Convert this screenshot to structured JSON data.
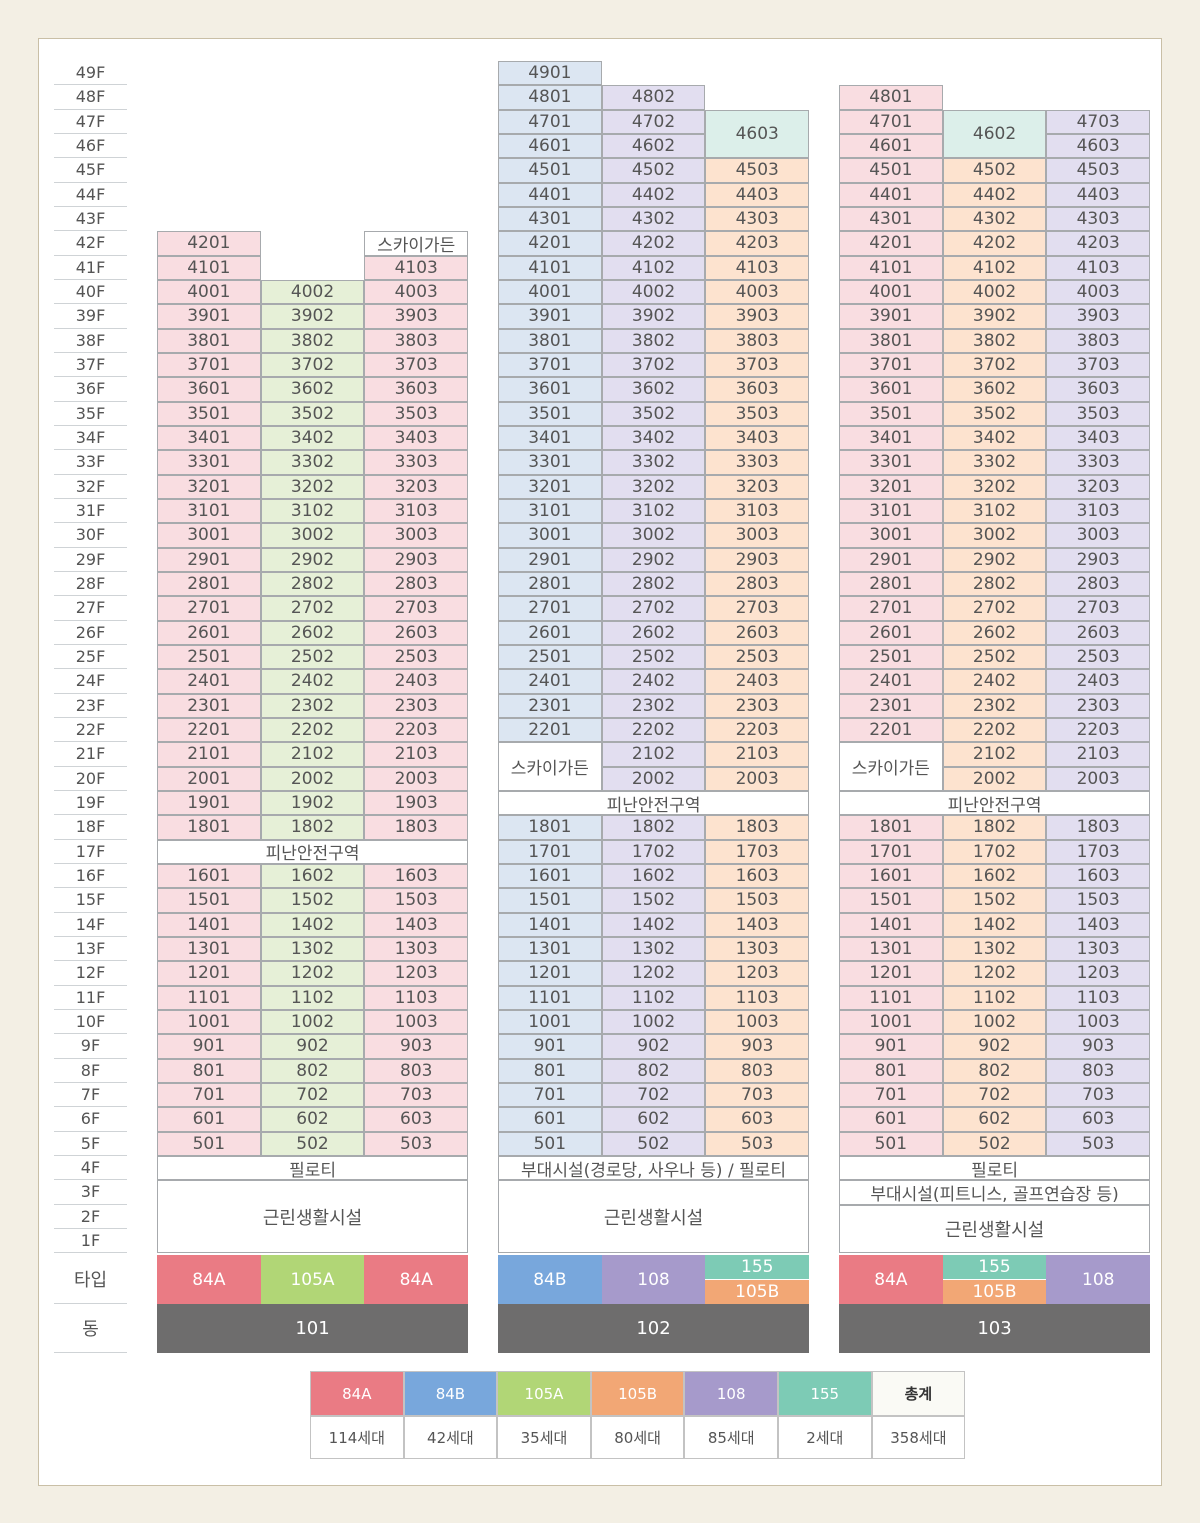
{
  "floors": [
    "49F",
    "48F",
    "47F",
    "46F",
    "45F",
    "44F",
    "43F",
    "42F",
    "41F",
    "40F",
    "39F",
    "38F",
    "37F",
    "36F",
    "35F",
    "34F",
    "33F",
    "32F",
    "31F",
    "30F",
    "29F",
    "28F",
    "27F",
    "26F",
    "25F",
    "24F",
    "23F",
    "22F",
    "21F",
    "20F",
    "19F",
    "18F",
    "17F",
    "16F",
    "15F",
    "14F",
    "13F",
    "12F",
    "11F",
    "10F",
    "9F",
    "8F",
    "7F",
    "6F",
    "5F",
    "4F",
    "3F",
    "2F",
    "1F"
  ],
  "row_labels": {
    "type": "타입",
    "dong": "동"
  },
  "colors": {
    "84A": "#f9dde1",
    "84B": "#dce6f2",
    "105A": "#e6f0d7",
    "105B": "#fde3cf",
    "108": "#e2def0",
    "155": "#dcefea",
    "84A_solid": "#ea7b84",
    "84B_solid": "#78a7dc",
    "105A_solid": "#b1d676",
    "105B_solid": "#f2a775",
    "108_solid": "#a69acb",
    "155_solid": "#7dcbb5",
    "total_bg": "#fafaf5",
    "dong_bg": "#6e6d6d"
  },
  "buildings": [
    {
      "dong": "101",
      "lines": [
        {
          "type": "84A",
          "top_floor": 42
        },
        {
          "type": "105A",
          "top_floor": 40
        },
        {
          "type": "84A",
          "top_floor": 41
        }
      ],
      "skip_floors": [
        17
      ],
      "special": [
        {
          "key": "skygarden",
          "text": "스카이가든",
          "line": 2,
          "floor": 42
        },
        {
          "key": "refuge",
          "text": "피난안전구역",
          "floor": 17
        },
        {
          "key": "pilotis",
          "text": "필로티",
          "floor": 4
        },
        {
          "key": "retail",
          "text": "근린생활시설",
          "floors": [
            3,
            1
          ]
        }
      ],
      "types": [
        {
          "labels": [
            "84A"
          ]
        },
        {
          "labels": [
            "105A"
          ]
        },
        {
          "labels": [
            "84A"
          ]
        }
      ]
    },
    {
      "dong": "102",
      "lines": [
        {
          "type": "84B",
          "top_floor": 49,
          "skip": [
            21,
            20
          ]
        },
        {
          "type": "108",
          "top_floor": 48
        },
        {
          "type": "105B",
          "top_floor": 45
        }
      ],
      "skip_floors": [
        19
      ],
      "special": [
        {
          "key": "penthouse",
          "text": "4603",
          "line": 2,
          "floors": [
            47,
            46
          ],
          "type": "155"
        },
        {
          "key": "skygarden",
          "text": "스카이가든",
          "line": 0,
          "floors": [
            21,
            20
          ]
        },
        {
          "key": "refuge",
          "text": "피난안전구역",
          "floor": 19
        },
        {
          "key": "pilotis",
          "text": "부대시설(경로당, 사우나 등) / 필로티",
          "floor": 4
        },
        {
          "key": "retail",
          "text": "근린생활시설",
          "floors": [
            3,
            1
          ]
        }
      ],
      "types": [
        {
          "labels": [
            "84B"
          ]
        },
        {
          "labels": [
            "108"
          ]
        },
        {
          "labels": [
            "155",
            "105B"
          ]
        }
      ]
    },
    {
      "dong": "103",
      "lines": [
        {
          "type": "84A",
          "top_floor": 48,
          "skip": [
            21,
            20
          ]
        },
        {
          "type": "105B",
          "top_floor": 45
        },
        {
          "type": "108",
          "top_floor": 47
        }
      ],
      "skip_floors": [
        19
      ],
      "special": [
        {
          "key": "penthouse",
          "text": "4602",
          "line": 1,
          "floors": [
            47,
            46
          ],
          "type": "155"
        },
        {
          "key": "skygarden",
          "text": "스카이가든",
          "line": 0,
          "floors": [
            21,
            20
          ]
        },
        {
          "key": "refuge",
          "text": "피난안전구역",
          "floor": 19
        },
        {
          "key": "pilotis",
          "text": "필로티",
          "floor": 4
        },
        {
          "key": "amenity",
          "text": "부대시설(피트니스, 골프연습장 등)",
          "floor": 3
        },
        {
          "key": "retail",
          "text": "근린생활시설",
          "floors": [
            2,
            1
          ]
        }
      ],
      "types": [
        {
          "labels": [
            "84A"
          ]
        },
        {
          "labels": [
            "155",
            "105B"
          ]
        },
        {
          "labels": [
            "108"
          ]
        }
      ]
    }
  ],
  "legend": {
    "headers": [
      "84A",
      "84B",
      "105A",
      "105B",
      "108",
      "155",
      "총계"
    ],
    "counts": [
      "114세대",
      "42세대",
      "35세대",
      "80세대",
      "85세대",
      "2세대",
      "358세대"
    ]
  }
}
